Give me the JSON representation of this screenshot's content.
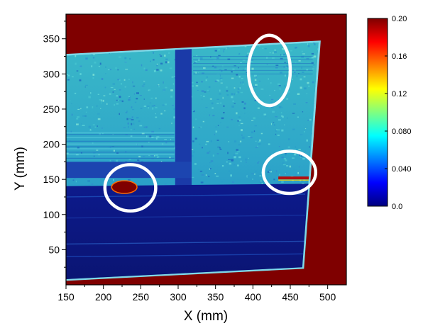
{
  "chart_data": {
    "type": "heatmap",
    "title": "",
    "xlabel": "X (mm)",
    "ylabel": "Y (mm)",
    "xlim": [
      150,
      525
    ],
    "ylim": [
      0,
      385
    ],
    "x_ticks": [
      "150",
      "200",
      "250",
      "300",
      "350",
      "400",
      "450",
      "500"
    ],
    "y_ticks": [
      "50",
      "100",
      "150",
      "200",
      "250",
      "300",
      "350"
    ],
    "colorbar": {
      "range": [
        0.0,
        0.2
      ],
      "tick_labels": [
        "0.20",
        "0.16",
        "0.12",
        "0.080",
        "0.040",
        "0.0"
      ],
      "tick_values": [
        0.2,
        0.16,
        0.12,
        0.08,
        0.04,
        0.0
      ],
      "colormap": [
        "#00007f",
        "#0000ff",
        "#0080ff",
        "#00ffff",
        "#80ff80",
        "#ffff00",
        "#ff8000",
        "#ff0000",
        "#7f0000"
      ]
    },
    "background_value": 0.2,
    "specimen": {
      "corners_mm": [
        [
          131,
          325
        ],
        [
          488,
          345
        ],
        [
          466,
          25
        ],
        [
          148,
          8
        ]
      ],
      "upper_region_value_range": [
        0.02,
        0.05
      ],
      "lower_region_value_range": [
        0.0,
        0.01
      ],
      "lower_region_y_max": 140,
      "vertical_stiffener_x": [
        296,
        318
      ],
      "horizontal_stiffener_y": [
        152,
        175
      ]
    },
    "annotations": [
      {
        "shape": "circle",
        "center": [
          236,
          138
        ],
        "rx": 34,
        "ry": 33,
        "value_inside": 0.2,
        "hotspot": {
          "center": [
            228,
            139
          ],
          "rx": 17,
          "ry": 9
        }
      },
      {
        "shape": "ellipse",
        "center": [
          422,
          305
        ],
        "rx": 28,
        "ry": 50,
        "value_inside": 0.05
      },
      {
        "shape": "ellipse",
        "center": [
          449,
          160
        ],
        "rx": 35,
        "ry": 30,
        "value_inside": 0.12,
        "hotspot": {
          "x1": 434,
          "x2": 478,
          "y": 152
        }
      }
    ],
    "grid": false,
    "legend": "colorbar-right"
  },
  "colors": {
    "background": "#7f0000",
    "annotation_circle": "#ffffff",
    "frame": "#000000"
  }
}
